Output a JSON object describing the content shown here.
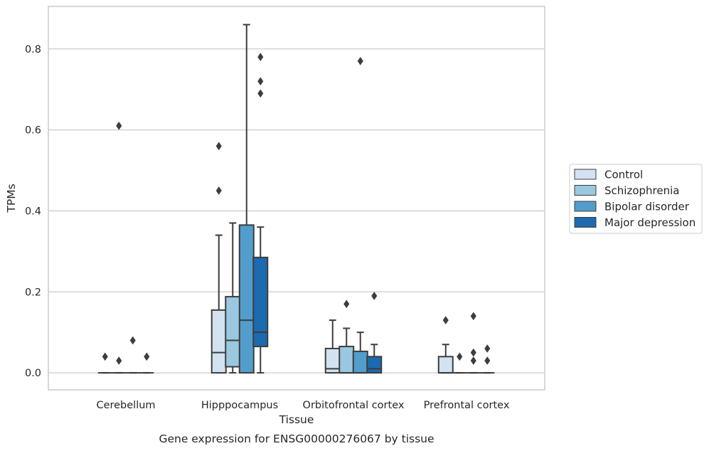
{
  "chart_data": {
    "type": "boxplot",
    "title": "",
    "xlabel": "Tissue",
    "ylabel": "TPMs",
    "caption": "Gene expression for ENSG00000276067 by tissue",
    "ylim": [
      -0.042,
      0.905
    ],
    "yticks": [
      0.0,
      0.2,
      0.4,
      0.6,
      0.8
    ],
    "ytick_labels": [
      "0.0",
      "0.2",
      "0.4",
      "0.6",
      "0.8"
    ],
    "grid": "horizontal",
    "legend_position": "right",
    "categories": [
      "Cerebellum",
      "Hipppocampus",
      "Orbitofrontal cortex",
      "Prefrontal cortex"
    ],
    "series": [
      {
        "name": "Control",
        "color": "#d2e2f1",
        "boxes": [
          {
            "q1": 0.0,
            "median": 0.0,
            "q3": 0.0,
            "whislo": 0.0,
            "whishi": 0.0,
            "fliers": [
              0.04
            ]
          },
          {
            "q1": 0.0,
            "median": 0.05,
            "q3": 0.155,
            "whislo": 0.0,
            "whishi": 0.34,
            "fliers": [
              0.45,
              0.56
            ]
          },
          {
            "q1": 0.0,
            "median": 0.01,
            "q3": 0.06,
            "whislo": 0.0,
            "whishi": 0.13,
            "fliers": []
          },
          {
            "q1": 0.0,
            "median": 0.0,
            "q3": 0.04,
            "whislo": 0.0,
            "whishi": 0.07,
            "fliers": [
              0.13
            ]
          }
        ]
      },
      {
        "name": "Schizophrenia",
        "color": "#9ac8e0",
        "boxes": [
          {
            "q1": 0.0,
            "median": 0.0,
            "q3": 0.0,
            "whislo": 0.0,
            "whishi": 0.0,
            "fliers": [
              0.61,
              0.03
            ]
          },
          {
            "q1": 0.015,
            "median": 0.08,
            "q3": 0.188,
            "whislo": 0.0,
            "whishi": 0.37,
            "fliers": []
          },
          {
            "q1": 0.0,
            "median": 0.0,
            "q3": 0.065,
            "whislo": 0.0,
            "whishi": 0.11,
            "fliers": [
              0.17
            ]
          },
          {
            "q1": 0.0,
            "median": 0.0,
            "q3": 0.0,
            "whislo": 0.0,
            "whishi": 0.0,
            "fliers": [
              0.04
            ]
          }
        ]
      },
      {
        "name": "Bipolar disorder",
        "color": "#529dcc",
        "boxes": [
          {
            "q1": 0.0,
            "median": 0.0,
            "q3": 0.0,
            "whislo": 0.0,
            "whishi": 0.0,
            "fliers": [
              0.08
            ]
          },
          {
            "q1": 0.0,
            "median": 0.13,
            "q3": 0.365,
            "whislo": 0.0,
            "whishi": 0.86,
            "fliers": []
          },
          {
            "q1": 0.0,
            "median": 0.0,
            "q3": 0.053,
            "whislo": 0.0,
            "whishi": 0.1,
            "fliers": [
              0.77
            ]
          },
          {
            "q1": 0.0,
            "median": 0.0,
            "q3": 0.0,
            "whislo": 0.0,
            "whishi": 0.0,
            "fliers": [
              0.14,
              0.05,
              0.03
            ]
          }
        ]
      },
      {
        "name": "Major depression",
        "color": "#1c6aaf",
        "boxes": [
          {
            "q1": 0.0,
            "median": 0.0,
            "q3": 0.0,
            "whislo": 0.0,
            "whishi": 0.0,
            "fliers": [
              0.04
            ]
          },
          {
            "q1": 0.065,
            "median": 0.1,
            "q3": 0.285,
            "whislo": 0.0,
            "whishi": 0.36,
            "fliers": [
              0.69,
              0.72,
              0.78
            ]
          },
          {
            "q1": 0.0,
            "median": 0.01,
            "q3": 0.04,
            "whislo": 0.0,
            "whishi": 0.07,
            "fliers": [
              0.19
            ]
          },
          {
            "q1": 0.0,
            "median": 0.0,
            "q3": 0.0,
            "whislo": 0.0,
            "whishi": 0.0,
            "fliers": [
              0.06,
              0.03
            ]
          }
        ]
      }
    ]
  },
  "colors": {
    "grid": "#cccccc",
    "axes_edge": "#cccccc",
    "box_edge": "#3d3d3d",
    "flier": "#3d3d3d"
  }
}
